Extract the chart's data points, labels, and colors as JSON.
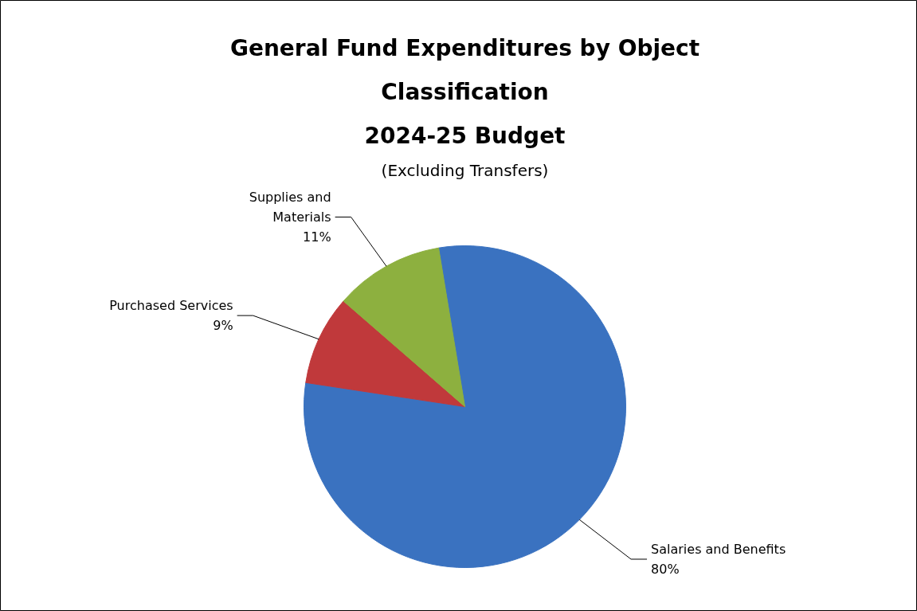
{
  "chart_data": {
    "type": "pie",
    "title": "General Fund Expenditures by Object Classification\n2024-25 Budget",
    "subtitle": "(Excluding Transfers)",
    "categories": [
      "Salaries and Benefits",
      "Purchased Services",
      "Supplies and Materials"
    ],
    "values": [
      80,
      9,
      11
    ],
    "colors": [
      "#3a72c0",
      "#c0393b",
      "#8db03f"
    ],
    "value_labels": [
      "80%",
      "9%",
      "11%"
    ]
  }
}
